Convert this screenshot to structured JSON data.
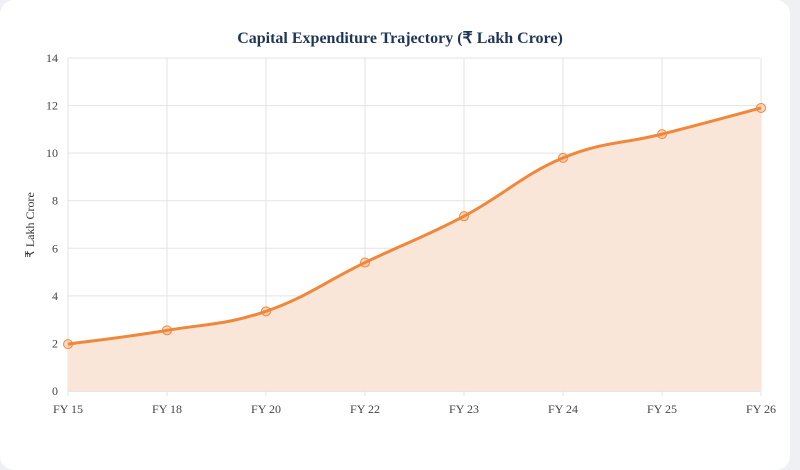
{
  "chart_data": {
    "type": "area",
    "title": "Capital Expenditure Trajectory (₹ Lakh Crore)",
    "xlabel": "",
    "ylabel": "₹ Lakh Crore",
    "categories": [
      "FY 15",
      "FY 18",
      "FY 20",
      "FY 22",
      "FY 23",
      "FY 24",
      "FY 25",
      "FY 26"
    ],
    "series": [
      {
        "values": [
          1.97,
          2.55,
          3.35,
          5.4,
          7.35,
          9.8,
          10.8,
          11.9
        ]
      }
    ],
    "ylim": [
      0,
      14
    ],
    "yticks": [
      0,
      2,
      4,
      6,
      8,
      10,
      12,
      14
    ],
    "grid": true,
    "legend": "none",
    "colors": {
      "line": "#f0873a",
      "fill": "#f9e6d8",
      "title": "#1f3557"
    }
  }
}
